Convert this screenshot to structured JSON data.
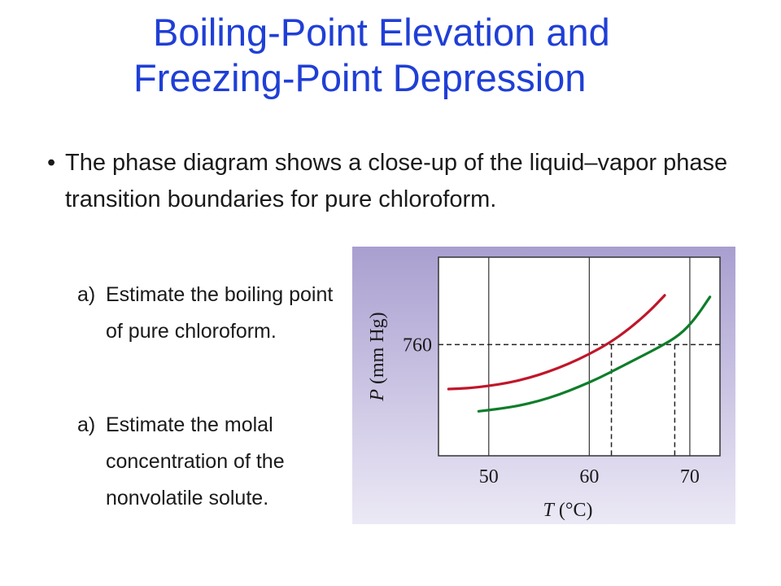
{
  "title": {
    "line1": "Boiling-Point  Elevation and",
    "line2": "Freezing-Point Depression"
  },
  "bullet": {
    "marker": "•",
    "text": "The phase diagram shows a close-up of the liquid–vapor phase transition boundaries for pure chloroform."
  },
  "questions": [
    {
      "marker": "a)",
      "text": "Estimate the boiling point of pure chloroform."
    },
    {
      "marker": "a)",
      "text": "Estimate the molal concentration of the nonvolatile solute."
    }
  ],
  "chart_data": {
    "type": "line",
    "xlabel_var": "T",
    "xlabel_unit": " (°C)",
    "ylabel_var": "P",
    "ylabel_unit": " (mm Hg)",
    "xlim": [
      45,
      73
    ],
    "ylim": [
      620,
      870
    ],
    "x_ticks": [
      50,
      60,
      70
    ],
    "y_ticks": [
      760
    ],
    "grid": true,
    "series": [
      {
        "color": "#c0162a",
        "points": [
          [
            46,
            704
          ],
          [
            48,
            705
          ],
          [
            50,
            708
          ],
          [
            52,
            712
          ],
          [
            54,
            718
          ],
          [
            56,
            726
          ],
          [
            58,
            736
          ],
          [
            60,
            748
          ],
          [
            62,
            762
          ],
          [
            64,
            780
          ],
          [
            66,
            802
          ],
          [
            67.5,
            822
          ]
        ]
      },
      {
        "color": "#0e7d2a",
        "points": [
          [
            49,
            676
          ],
          [
            51,
            679
          ],
          [
            53,
            683
          ],
          [
            55,
            689
          ],
          [
            57,
            697
          ],
          [
            59,
            707
          ],
          [
            61,
            718
          ],
          [
            63,
            731
          ],
          [
            65,
            744
          ],
          [
            67,
            757
          ],
          [
            69,
            772
          ],
          [
            70.5,
            792
          ],
          [
            72,
            820
          ]
        ]
      }
    ],
    "reference_lines": {
      "y": 760,
      "x": [
        62.2,
        68.5
      ]
    },
    "colors": {
      "background_top": "#a99fd0",
      "background_bottom": "#ece9f6",
      "plot_bg": "#ffffff"
    }
  }
}
